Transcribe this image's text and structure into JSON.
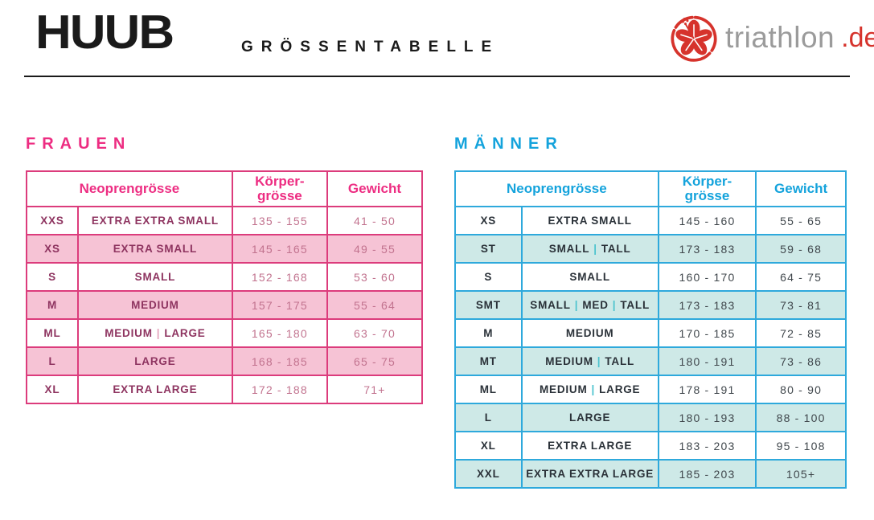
{
  "header": {
    "brand": "HUUB",
    "title": "GRÖSSENTABELLE",
    "site_logo": {
      "name": "triathlon.de",
      "text": "triathlon",
      "tld": ".de"
    }
  },
  "columns": {
    "size": "Neoprengrösse",
    "height_line1": "Körper-",
    "height_line2": "grösse",
    "weight": "Gewicht"
  },
  "tables": [
    {
      "id": "women",
      "title": "FRAUEN",
      "rows": [
        {
          "code": "XXS",
          "name": [
            "EXTRA EXTRA SMALL"
          ],
          "height": "135 - 155",
          "weight": "41 - 50"
        },
        {
          "code": "XS",
          "name": [
            "EXTRA SMALL"
          ],
          "height": "145 - 165",
          "weight": "49 - 55"
        },
        {
          "code": "S",
          "name": [
            "SMALL"
          ],
          "height": "152 - 168",
          "weight": "53 - 60"
        },
        {
          "code": "M",
          "name": [
            "MEDIUM"
          ],
          "height": "157 - 175",
          "weight": "55 - 64"
        },
        {
          "code": "ML",
          "name": [
            "MEDIUM",
            "LARGE"
          ],
          "height": "165 - 180",
          "weight": "63 - 70"
        },
        {
          "code": "L",
          "name": [
            "LARGE"
          ],
          "height": "168 - 185",
          "weight": "65 - 75"
        },
        {
          "code": "XL",
          "name": [
            "EXTRA LARGE"
          ],
          "height": "172 - 188",
          "weight": "71+"
        }
      ]
    },
    {
      "id": "men",
      "title": "MÄNNER",
      "rows": [
        {
          "code": "XS",
          "name": [
            "EXTRA SMALL"
          ],
          "height": "145 - 160",
          "weight": "55 - 65"
        },
        {
          "code": "ST",
          "name": [
            "SMALL",
            "TALL"
          ],
          "height": "173 - 183",
          "weight": "59 - 68"
        },
        {
          "code": "S",
          "name": [
            "SMALL"
          ],
          "height": "160 - 170",
          "weight": "64 - 75"
        },
        {
          "code": "SMT",
          "name": [
            "SMALL",
            "MED",
            "TALL"
          ],
          "height": "173 - 183",
          "weight": "73 - 81"
        },
        {
          "code": "M",
          "name": [
            "MEDIUM"
          ],
          "height": "170 - 185",
          "weight": "72 - 85"
        },
        {
          "code": "MT",
          "name": [
            "MEDIUM",
            "TALL"
          ],
          "height": "180 - 191",
          "weight": "73 - 86"
        },
        {
          "code": "ML",
          "name": [
            "MEDIUM",
            "LARGE"
          ],
          "height": "178 - 191",
          "weight": "80 - 90"
        },
        {
          "code": "L",
          "name": [
            "LARGE"
          ],
          "height": "180 - 193",
          "weight": "88 - 100"
        },
        {
          "code": "XL",
          "name": [
            "EXTRA LARGE"
          ],
          "height": "183 - 203",
          "weight": "95 - 108"
        },
        {
          "code": "XXL",
          "name": [
            "EXTRA EXTRA LARGE"
          ],
          "height": "185 - 203",
          "weight": "105+"
        }
      ]
    }
  ],
  "colors": {
    "brand_black": "#1a1a1a",
    "logo_red": "#d6332c",
    "logo_gray": "#9b9b9b",
    "women_title": "#ed2d82",
    "women_accent": "#dc3c7c",
    "women_text_dark": "#8e3460",
    "women_numbers": "#c2738f",
    "women_row_tint": "#f6c3d5",
    "women_pipe": "#e5a3bc",
    "men_title": "#14a3dc",
    "men_accent": "#2ea9dc",
    "men_text_dark": "#2a3138",
    "men_numbers": "#40474c",
    "men_row_tint": "#cee9e7",
    "men_pipe": "#4bc3ce"
  }
}
